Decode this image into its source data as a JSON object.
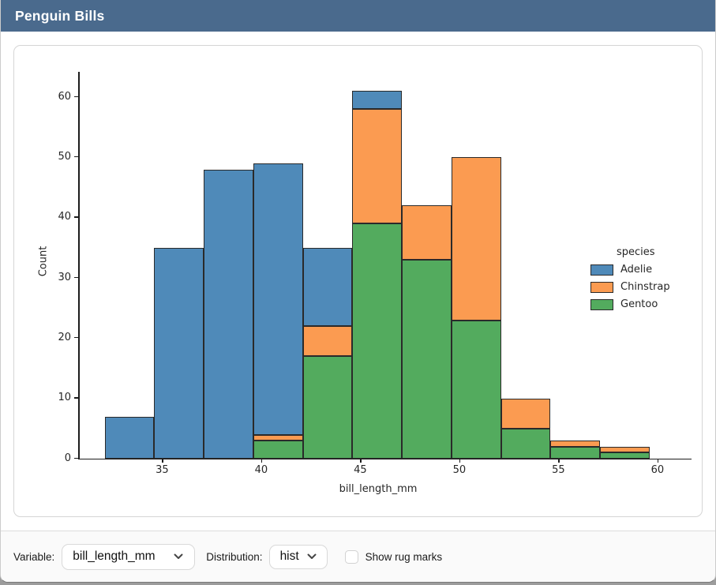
{
  "window": {
    "title": "Penguin Bills"
  },
  "theme": {
    "header_bg": "#4a6a8d",
    "header_text": "#ffffff",
    "card_border": "#d5d5d5",
    "control_bar_bg": "#fafafa",
    "control_border": "#d9d9d9",
    "divider": "#dcdcdc",
    "bar_edge": "#2a2a2a",
    "axis_text": "#262626",
    "window_edge_bg": "#9c9c9c"
  },
  "controls": {
    "variable": {
      "label": "Variable:",
      "value": "bill_length_mm"
    },
    "distribution": {
      "label": "Distribution:",
      "value": "hist"
    },
    "rug": {
      "label": "Show rug marks",
      "checked": false
    }
  },
  "chart_data": {
    "type": "bar",
    "subtype": "stacked-histogram",
    "title": "",
    "xlabel": "bill_length_mm",
    "ylabel": "Count",
    "xlim": [
      30.8,
      61.0
    ],
    "ylim": [
      0,
      64.2
    ],
    "xticks": [
      35,
      40,
      45,
      50,
      55,
      60
    ],
    "yticks": [
      0,
      10,
      20,
      30,
      40,
      50,
      60
    ],
    "grid": false,
    "bin_edges": [
      32.1,
      34.6,
      37.1,
      39.6,
      42.1,
      44.6,
      47.1,
      49.6,
      52.1,
      54.6,
      57.1,
      59.6
    ],
    "stack_order_bottom_to_top": [
      "Gentoo",
      "Chinstrap",
      "Adelie"
    ],
    "series": [
      {
        "name": "Adelie",
        "color": "#4f8ab9",
        "values": [
          7,
          35,
          48,
          45,
          13,
          3,
          0,
          0,
          0,
          0,
          0
        ]
      },
      {
        "name": "Chinstrap",
        "color": "#fb9b51",
        "values": [
          0,
          0,
          0,
          1,
          5,
          19,
          9,
          27,
          5,
          1,
          1
        ]
      },
      {
        "name": "Gentoo",
        "color": "#53ab5e",
        "values": [
          0,
          0,
          0,
          3,
          17,
          39,
          33,
          23,
          5,
          2,
          1
        ]
      }
    ],
    "bin_totals": [
      7,
      35,
      48,
      49,
      35,
      61,
      42,
      50,
      10,
      3,
      2
    ],
    "legend": {
      "title": "species",
      "entries": [
        "Adelie",
        "Chinstrap",
        "Gentoo"
      ],
      "position": "center-right"
    }
  }
}
